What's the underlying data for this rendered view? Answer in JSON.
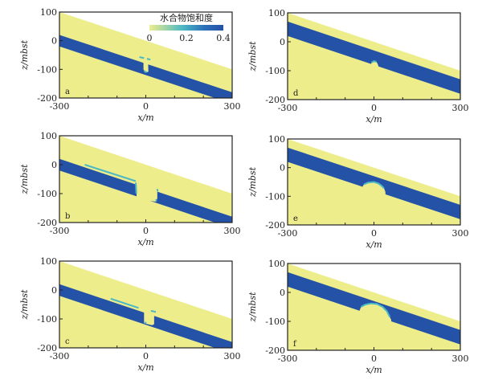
{
  "colors": {
    "low": "#eded8c",
    "mid": "#4cb8c4",
    "high": "#2452a6",
    "above_seafloor": "#ffffff",
    "axis": "#222222"
  },
  "colorbar": {
    "title": "水合物饱和度",
    "ticks": [
      "0",
      "0.2",
      "0.4"
    ],
    "range": [
      0,
      0.4
    ]
  },
  "chart_data": {
    "type": "heatmap",
    "description_axes": {
      "xlabel": "x/m",
      "ylabel": "z/mbst",
      "xlim": [
        -300,
        300
      ],
      "ylim": [
        -200,
        100
      ],
      "x_ticks": [
        "-300",
        "0",
        "300"
      ],
      "y_ticks": [
        "100",
        "0",
        "-100",
        "-200"
      ],
      "x_minor_ticks": [
        -200,
        -100,
        100,
        200
      ]
    },
    "seafloor": [
      [
        -300,
        100
      ],
      [
        300,
        -100
      ]
    ],
    "panels": [
      {
        "label": "a",
        "layer_top": [
          [
            -300,
            20
          ],
          [
            300,
            -180
          ]
        ],
        "layer_bottom": [
          [
            -300,
            -20
          ],
          [
            300,
            -220
          ]
        ],
        "gaps": [
          [
            [
              -8,
              -72
            ],
            [
              8,
              -77
            ],
            [
              9,
              -108
            ],
            [
              -2,
              -112
            ],
            [
              -8,
              -100
            ]
          ]
        ],
        "domes": [],
        "cyan": [
          [
            [
              -22,
              -57
            ],
            [
              -6,
              -61
            ]
          ],
          [
            [
              4,
              -63
            ],
            [
              16,
              -66
            ]
          ],
          [
            [
              -6,
              -106
            ],
            [
              3,
              -110
            ]
          ]
        ]
      },
      {
        "label": "b",
        "layer_top": [
          [
            -300,
            20
          ],
          [
            300,
            -180
          ]
        ],
        "layer_bottom": [
          [
            -300,
            -20
          ],
          [
            300,
            -220
          ]
        ],
        "gaps": [
          [
            [
              -32,
              -55
            ],
            [
              40,
              -80
            ],
            [
              40,
              -118
            ],
            [
              36,
              -120
            ],
            [
              36,
              -128
            ],
            [
              -32,
              -118
            ]
          ],
          [
            [
              -210,
              -2
            ],
            [
              -34,
              -58
            ],
            [
              -34,
              -61
            ],
            [
              -210,
              -7
            ]
          ]
        ],
        "domes": [],
        "cyan": [
          [
            [
              -212,
              0
            ],
            [
              -35,
              -57
            ]
          ],
          [
            [
              -35,
              -62
            ],
            [
              -33,
              -100
            ]
          ],
          [
            [
              40,
              -84
            ],
            [
              41,
              -92
            ]
          ],
          [
            [
              36,
              -120
            ],
            [
              36,
              -126
            ]
          ]
        ]
      },
      {
        "label": "c",
        "layer_top": [
          [
            -300,
            20
          ],
          [
            300,
            -180
          ]
        ],
        "layer_bottom": [
          [
            -300,
            -20
          ],
          [
            300,
            -220
          ]
        ],
        "gaps": [
          [
            [
              -6,
              -55
            ],
            [
              29,
              -70
            ],
            [
              29,
              -118
            ],
            [
              22,
              -122
            ],
            [
              -6,
              -115
            ]
          ],
          [
            [
              -120,
              -32
            ],
            [
              -25,
              -63
            ],
            [
              -25,
              -66
            ],
            [
              -120,
              -36
            ]
          ]
        ],
        "domes": [],
        "cyan": [
          [
            [
              -122,
              -30
            ],
            [
              -25,
              -62
            ]
          ],
          [
            [
              18,
              -72
            ],
            [
              35,
              -76
            ]
          ],
          [
            [
              -4,
              -112
            ],
            [
              2,
              -114
            ]
          ]
        ]
      },
      {
        "label": "d",
        "layer_top": [
          [
            -300,
            70
          ],
          [
            300,
            -130
          ]
        ],
        "layer_bottom": [
          [
            -300,
            20
          ],
          [
            300,
            -180
          ]
        ],
        "gaps": [],
        "domes": [
          [
            [
              -10,
              -78
            ],
            [
              -8,
              -71
            ],
            [
              0,
              -67
            ],
            [
              8,
              -69
            ],
            [
              12,
              -75
            ],
            [
              15,
              -82
            ],
            [
              15,
              -100
            ],
            [
              -10,
              -100
            ]
          ]
        ],
        "cyan": [
          [
            [
              -8,
              -71
            ],
            [
              0,
              -67
            ],
            [
              8,
              -69
            ]
          ]
        ]
      },
      {
        "label": "e",
        "layer_top": [
          [
            -300,
            70
          ],
          [
            300,
            -130
          ]
        ],
        "layer_bottom": [
          [
            -300,
            20
          ],
          [
            300,
            -180
          ]
        ],
        "gaps": [],
        "domes": [
          [
            [
              -40,
              -67
            ],
            [
              -35,
              -58
            ],
            [
              -20,
              -52
            ],
            [
              0,
              -50
            ],
            [
              15,
              -55
            ],
            [
              25,
              -62
            ],
            [
              35,
              -72
            ],
            [
              40,
              -85
            ],
            [
              40,
              -110
            ],
            [
              -40,
              -110
            ]
          ]
        ],
        "cyan": [
          [
            [
              -35,
              -58
            ],
            [
              -20,
              -52
            ],
            [
              0,
              -50
            ],
            [
              15,
              -55
            ],
            [
              25,
              -62
            ],
            [
              35,
              -72
            ]
          ]
        ]
      },
      {
        "label": "f",
        "layer_top": [
          [
            -300,
            70
          ],
          [
            300,
            -130
          ]
        ],
        "layer_bottom": [
          [
            -300,
            20
          ],
          [
            300,
            -180
          ]
        ],
        "gaps": [],
        "domes": [
          [
            [
              -50,
              -63
            ],
            [
              -45,
              -50
            ],
            [
              -30,
              -42
            ],
            [
              -10,
              -38
            ],
            [
              10,
              -40
            ],
            [
              30,
              -50
            ],
            [
              45,
              -65
            ],
            [
              55,
              -85
            ],
            [
              60,
              -95
            ],
            [
              60,
              -120
            ],
            [
              -50,
              -120
            ]
          ]
        ],
        "cyan": [
          [
            [
              -45,
              -50
            ],
            [
              -30,
              -42
            ],
            [
              -10,
              -38
            ],
            [
              10,
              -40
            ],
            [
              30,
              -50
            ],
            [
              45,
              -65
            ],
            [
              55,
              -85
            ]
          ]
        ]
      }
    ]
  }
}
